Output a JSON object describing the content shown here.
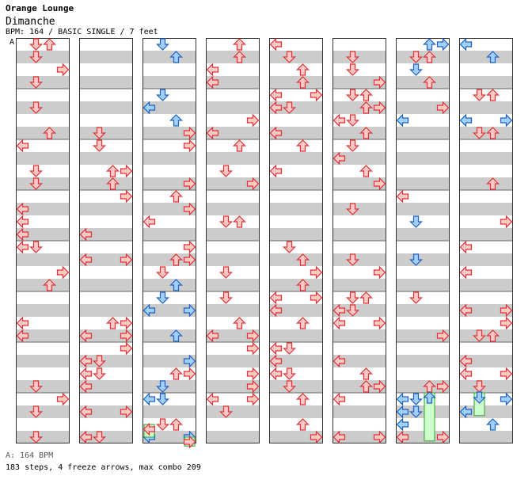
{
  "header": {
    "series": "Orange Lounge",
    "song": "Dimanche",
    "info": "BPM: 164 / BASIC SINGLE / 7 feet",
    "bpm_marker": "A"
  },
  "footer": {
    "bpm_legend": "A: 164 BPM",
    "stats": "183 steps, 4 freeze arrows, max combo 209"
  },
  "colors": {
    "stripe": "#cccccc",
    "red_fill": "#ffc8c8",
    "red_stroke": "#e03030",
    "blue_fill": "#a0d0ff",
    "blue_stroke": "#2060c0",
    "freeze_fill": "#ccffcc",
    "freeze_stroke": "#30a030"
  },
  "steps": [
    [
      [
        1,
        0,
        "r"
      ]
    ],
    [
      [
        2,
        0,
        "r"
      ]
    ],
    [
      [
        2,
        2,
        "r"
      ]
    ],
    [
      [
        2,
        1,
        "r"
      ]
    ],
    [
      [
        0,
        3,
        "r"
      ]
    ],
    [
      [
        1,
        1,
        "r"
      ]
    ],
    [
      [
        1,
        2,
        "r"
      ]
    ],
    [
      [
        0,
        0,
        "r"
      ]
    ],
    [
      [
        3,
        3,
        "r"
      ]
    ],
    [
      [
        0,
        0,
        "r"
      ],
      [
        3,
        3,
        "r"
      ]
    ],
    [
      [
        0,
        0,
        "r"
      ],
      [
        3,
        3,
        "r"
      ]
    ],
    [
      [
        2,
        2,
        "r"
      ]
    ],
    [
      [
        1,
        1,
        "r"
      ]
    ],
    [
      [
        1,
        1,
        "r"
      ]
    ],
    [
      [
        0,
        0,
        "r"
      ],
      [
        3,
        3,
        "r"
      ]
    ],
    [
      [
        2,
        0,
        "r"
      ]
    ],
    [
      [
        1,
        0,
        "r"
      ]
    ],
    [
      [
        0,
        2,
        "r"
      ]
    ],
    [
      [
        3,
        1,
        "r"
      ]
    ],
    [
      [
        0,
        3,
        "r"
      ]
    ],
    [
      [
        1,
        3,
        "r"
      ]
    ],
    [
      [
        2,
        2,
        "r"
      ]
    ],
    [
      [
        0,
        0,
        "r"
      ],
      [
        3,
        3,
        "r"
      ]
    ],
    [
      [
        1,
        2,
        "r"
      ]
    ]
  ],
  "freezes": [
    {
      "column": 2,
      "lane": 0,
      "start_beat": 30.5,
      "end_beat": 31.5,
      "kind": "freeze"
    },
    {
      "column": 2,
      "lane": 3,
      "start_beat": 31.5,
      "end_beat": 32.2,
      "kind": "freeze"
    },
    {
      "column": 6,
      "lane": 2,
      "start_beat": 28.0,
      "end_beat": 31.8,
      "kind": "freeze"
    },
    {
      "column": 7,
      "lane": 1,
      "start_beat": 28.0,
      "end_beat": 29.8,
      "kind": "freeze"
    }
  ],
  "layout_hint": {
    "columns": 8,
    "beats_per_column": 32,
    "measures_per_column": 8,
    "lanes": 4
  }
}
